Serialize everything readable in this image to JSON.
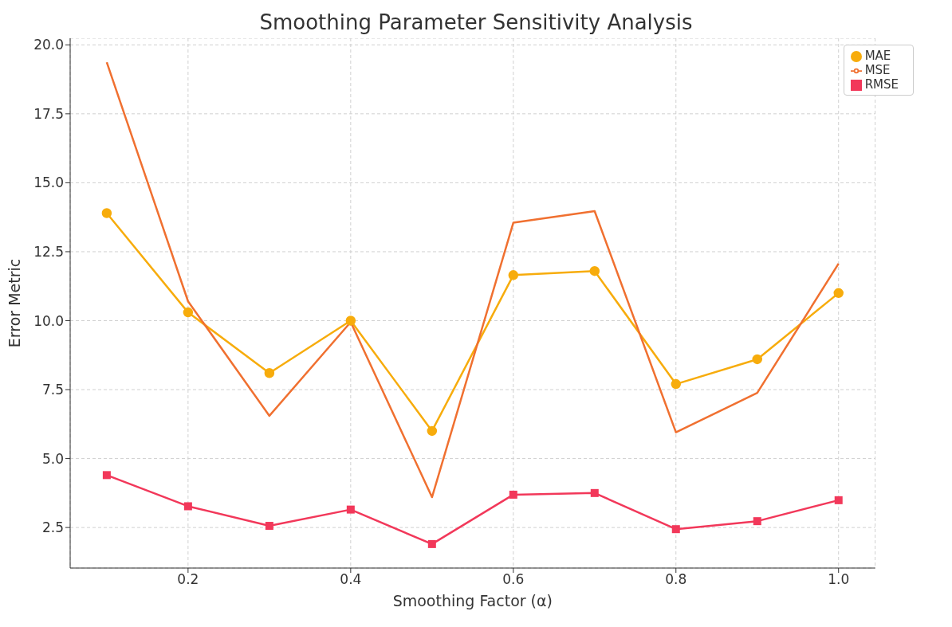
{
  "chart_data": {
    "type": "line",
    "title": "Smoothing Parameter Sensitivity Analysis",
    "xlabel": "Smoothing Factor (α)",
    "ylabel": "Error Metric",
    "x": [
      0.1,
      0.2,
      0.3,
      0.4,
      0.5,
      0.6,
      0.7,
      0.8,
      0.9,
      1.0
    ],
    "series": [
      {
        "name": "MAE",
        "color": "#f7ac0c",
        "marker": "circle",
        "values": [
          13.9,
          10.3,
          8.1,
          10.0,
          6.0,
          11.65,
          11.8,
          7.7,
          8.6,
          11.0
        ]
      },
      {
        "name": "MSE",
        "color": "#f07030",
        "marker": "none",
        "values": [
          19.37,
          10.7,
          6.55,
          9.95,
          3.6,
          13.55,
          13.97,
          5.95,
          7.38,
          12.07
        ]
      },
      {
        "name": "RMSE",
        "color": "#f2385a",
        "marker": "square",
        "values": [
          4.4,
          3.27,
          2.56,
          3.15,
          1.9,
          3.69,
          3.75,
          2.44,
          2.73,
          3.49
        ]
      }
    ],
    "xlim": [
      0.055,
      1.045
    ],
    "ylim": [
      1.03,
      20.24
    ],
    "xticks": [
      {
        "value": 0.2,
        "label": "0.2"
      },
      {
        "value": 0.4,
        "label": "0.4"
      },
      {
        "value": 0.6,
        "label": "0.6"
      },
      {
        "value": 0.8,
        "label": "0.8"
      },
      {
        "value": 1.0,
        "label": "1.0"
      }
    ],
    "yticks": [
      {
        "value": 2.5,
        "label": "2.5"
      },
      {
        "value": 5,
        "label": "5.0"
      },
      {
        "value": 7.5,
        "label": "7.5"
      },
      {
        "value": 10,
        "label": "10.0"
      },
      {
        "value": 12.5,
        "label": "12.5"
      },
      {
        "value": 15,
        "label": "15.0"
      },
      {
        "value": 17.5,
        "label": "17.5"
      },
      {
        "value": 20,
        "label": "20.0"
      }
    ],
    "grid": true,
    "legend": "top right",
    "line_style": "solid"
  }
}
